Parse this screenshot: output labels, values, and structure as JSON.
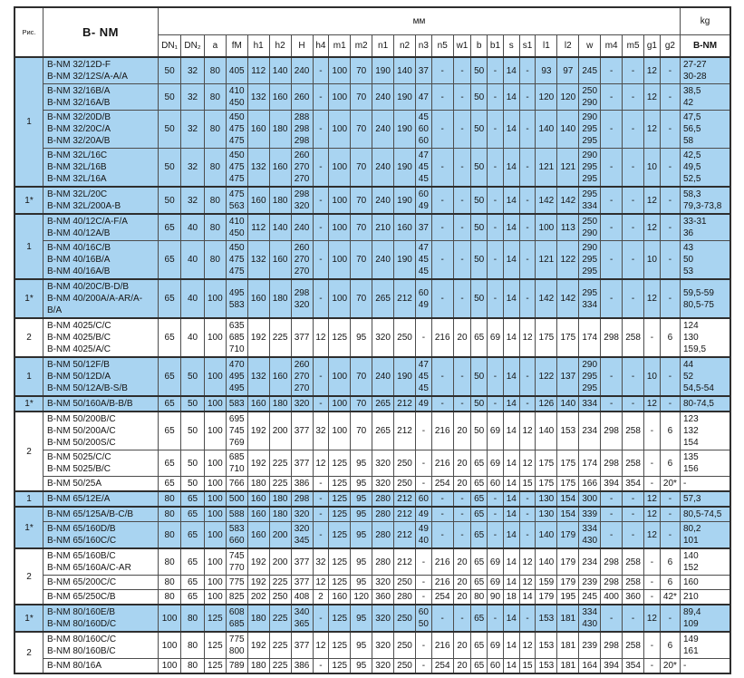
{
  "header": {
    "ris": "Рис.",
    "model": "B- NM",
    "unit": "мм",
    "kg": "kg",
    "kg_model": "B-NM"
  },
  "columns": [
    "DN₁",
    "DN₂",
    "a",
    "fM",
    "h1",
    "h2",
    "H",
    "h4",
    "m1",
    "m2",
    "n1",
    "n2",
    "n3",
    "n5",
    "w1",
    "b",
    "b1",
    "s",
    "s1",
    "l1",
    "l2",
    "w",
    "m4",
    "m5",
    "g1",
    "g2"
  ],
  "colors": {
    "row_highlight": "#a9d4f1",
    "grid_line": "#4d4d4d"
  },
  "groups": [
    {
      "ris": "1",
      "blue": true,
      "rows": [
        {
          "models": [
            "B-NM 32/12D-F",
            "B-NM 32/12S/A-A/A"
          ],
          "dims": [
            "50",
            "32",
            "80",
            "405",
            "112",
            "140",
            "240",
            "-",
            "100",
            "70",
            "190",
            "140",
            "37",
            "-",
            "-",
            "50",
            "-",
            "14",
            "-",
            "93",
            "97",
            "245",
            "-",
            "-",
            "12",
            "-"
          ],
          "kg": "27-27\n30-28"
        },
        {
          "models": [
            "B-NM 32/16B/A",
            "B-NM 32/16A/B"
          ],
          "dims": [
            "50",
            "32",
            "80",
            "410\n450",
            "132",
            "160",
            "260",
            "-",
            "100",
            "70",
            "240",
            "190",
            "47",
            "-",
            "-",
            "50",
            "-",
            "14",
            "-",
            "120",
            "120",
            "250\n290",
            "-",
            "-",
            "12",
            "-"
          ],
          "kg": "38,5\n42"
        },
        {
          "models": [
            "B-NM 32/20D/B",
            "B-NM 32/20C/A",
            "B-NM 32/20A/B"
          ],
          "dims": [
            "50",
            "32",
            "80",
            "450\n475\n475",
            "160",
            "180",
            "288\n298\n298",
            "-",
            "100",
            "70",
            "240",
            "190",
            "45\n60\n60",
            "-",
            "-",
            "50",
            "-",
            "14",
            "-",
            "140",
            "140",
            "290\n295\n295",
            "-",
            "-",
            "12",
            "-"
          ],
          "kg": "47,5\n56,5\n58"
        },
        {
          "models": [
            "B-NM 32L/16C",
            "B-NM 32L/16B",
            "B-NM 32L/16A"
          ],
          "dims": [
            "50",
            "32",
            "80",
            "450\n475\n475",
            "132",
            "160",
            "260\n270\n270",
            "-",
            "100",
            "70",
            "240",
            "190",
            "47\n45\n45",
            "-",
            "-",
            "50",
            "-",
            "14",
            "-",
            "121",
            "121",
            "290\n295\n295",
            "-",
            "-",
            "10",
            "-"
          ],
          "kg": "42,5\n49,5\n52,5"
        }
      ]
    },
    {
      "ris": "1*",
      "blue": true,
      "rows": [
        {
          "models": [
            "B-NM 32L/20C",
            "B-NM 32L/200A-B"
          ],
          "dims": [
            "50",
            "32",
            "80",
            "475\n563",
            "160",
            "180",
            "298\n320",
            "-",
            "100",
            "70",
            "240",
            "190",
            "60\n49",
            "-",
            "-",
            "50",
            "-",
            "14",
            "-",
            "142",
            "142",
            "295\n334",
            "-",
            "-",
            "12",
            "-"
          ],
          "kg": "58,3\n79,3-73,8"
        }
      ]
    },
    {
      "ris": "1",
      "blue": true,
      "rows": [
        {
          "models": [
            "B-NM 40/12C/A-F/A",
            "B-NM 40/12A/B"
          ],
          "dims": [
            "65",
            "40",
            "80",
            "410\n450",
            "112",
            "140",
            "240",
            "-",
            "100",
            "70",
            "210",
            "160",
            "37",
            "-",
            "-",
            "50",
            "-",
            "14",
            "-",
            "100",
            "113",
            "250\n290",
            "-",
            "-",
            "12",
            "-"
          ],
          "kg": "33-31\n36"
        },
        {
          "models": [
            "B-NM 40/16C/B",
            "B-NM 40/16B/A",
            "B-NM 40/16A/B"
          ],
          "dims": [
            "65",
            "40",
            "80",
            "450\n475\n475",
            "132",
            "160",
            "260\n270\n270",
            "-",
            "100",
            "70",
            "240",
            "190",
            "47\n45\n45",
            "-",
            "-",
            "50",
            "-",
            "14",
            "-",
            "121",
            "122",
            "290\n295\n295",
            "-",
            "-",
            "10",
            "-"
          ],
          "kg": "43\n50\n53"
        }
      ]
    },
    {
      "ris": "1*",
      "blue": true,
      "rows": [
        {
          "models": [
            "B-NM 40/20C/B-D/B",
            "B-NM 40/200A/A-AR/A-B/A"
          ],
          "dims": [
            "65",
            "40",
            "100",
            "495\n583",
            "160",
            "180",
            "298\n320",
            "-",
            "100",
            "70",
            "265",
            "212",
            "60\n49",
            "-",
            "-",
            "50",
            "-",
            "14",
            "-",
            "142",
            "142",
            "295\n334",
            "-",
            "-",
            "12",
            "-"
          ],
          "kg": "59,5-59\n80,5-75"
        }
      ]
    },
    {
      "ris": "2",
      "blue": false,
      "rows": [
        {
          "models": [
            "B-NM 4025/C/C",
            "B-NM 4025/B/C",
            "B-NM 4025/A/C"
          ],
          "dims": [
            "65",
            "40",
            "100",
            "635\n685\n710",
            "192",
            "225",
            "377",
            "12",
            "125",
            "95",
            "320",
            "250",
            "-",
            "216",
            "20",
            "65",
            "69",
            "14",
            "12",
            "175",
            "175",
            "174",
            "298",
            "258",
            "-",
            "6"
          ],
          "kg": "124\n130\n159,5"
        }
      ]
    },
    {
      "ris": "1",
      "blue": true,
      "rows": [
        {
          "models": [
            "B-NM 50/12F/B",
            "B-NM 50/12D/A",
            "B-NM 50/12A/B-S/B"
          ],
          "dims": [
            "65",
            "50",
            "100",
            "470\n495\n495",
            "132",
            "160",
            "260\n270\n270",
            "-",
            "100",
            "70",
            "240",
            "190",
            "47\n45\n45",
            "-",
            "-",
            "50",
            "-",
            "14",
            "-",
            "122",
            "137",
            "290\n295\n295",
            "-",
            "-",
            "10",
            "-"
          ],
          "kg": "44\n52\n54,5-54"
        }
      ]
    },
    {
      "ris": "1*",
      "blue": true,
      "rows": [
        {
          "models": [
            "B-NM 50/160A/B-B/B"
          ],
          "dims": [
            "65",
            "50",
            "100",
            "583",
            "160",
            "180",
            "320",
            "-",
            "100",
            "70",
            "265",
            "212",
            "49",
            "-",
            "-",
            "50",
            "-",
            "14",
            "-",
            "126",
            "140",
            "334",
            "-",
            "-",
            "12",
            "-"
          ],
          "kg": "80-74,5"
        }
      ]
    },
    {
      "ris": "2",
      "blue": false,
      "rows": [
        {
          "models": [
            "B-NM 50/200B/C",
            "B-NM 50/200A/C",
            "B-NM 50/200S/C"
          ],
          "dims": [
            "65",
            "50",
            "100",
            "695\n745\n769",
            "192",
            "200",
            "377",
            "32",
            "100",
            "70",
            "265",
            "212",
            "-",
            "216",
            "20",
            "50",
            "69",
            "14",
            "12",
            "140",
            "153",
            "234",
            "298",
            "258",
            "-",
            "6"
          ],
          "kg": "123\n132\n154"
        },
        {
          "models": [
            "B-NM 5025/C/C",
            "B-NM 5025/B/C"
          ],
          "dims": [
            "65",
            "50",
            "100",
            "685\n710",
            "192",
            "225",
            "377",
            "12",
            "125",
            "95",
            "320",
            "250",
            "-",
            "216",
            "20",
            "65",
            "69",
            "14",
            "12",
            "175",
            "175",
            "174",
            "298",
            "258",
            "-",
            "6"
          ],
          "kg": "135\n156"
        },
        {
          "models": [
            "B-NM 50/25A"
          ],
          "dims": [
            "65",
            "50",
            "100",
            "766",
            "180",
            "225",
            "386",
            "-",
            "125",
            "95",
            "320",
            "250",
            "-",
            "254",
            "20",
            "65",
            "60",
            "14",
            "15",
            "175",
            "175",
            "166",
            "394",
            "354",
            "-",
            "20*"
          ],
          "kg": "-"
        }
      ]
    },
    {
      "ris": "1",
      "blue": true,
      "rows": [
        {
          "models": [
            "B-NM 65/12E/A"
          ],
          "dims": [
            "80",
            "65",
            "100",
            "500",
            "160",
            "180",
            "298",
            "-",
            "125",
            "95",
            "280",
            "212",
            "60",
            "-",
            "-",
            "65",
            "-",
            "14",
            "-",
            "130",
            "154",
            "300",
            "-",
            "-",
            "12",
            "-"
          ],
          "kg": "57,3"
        }
      ]
    },
    {
      "ris": "1*",
      "blue": true,
      "rows": [
        {
          "models": [
            "B-NM 65/125A/B-C/B"
          ],
          "dims": [
            "80",
            "65",
            "100",
            "588",
            "160",
            "180",
            "320",
            "-",
            "125",
            "95",
            "280",
            "212",
            "49",
            "-",
            "-",
            "65",
            "-",
            "14",
            "-",
            "130",
            "154",
            "339",
            "-",
            "-",
            "12",
            "-"
          ],
          "kg": "80,5-74,5"
        },
        {
          "models": [
            "B-NM 65/160D/B",
            "B-NM 65/160C/C"
          ],
          "dims": [
            "80",
            "65",
            "100",
            "583\n660",
            "160",
            "200",
            "320\n345",
            "-",
            "125",
            "95",
            "280",
            "212",
            "49\n40",
            "-",
            "-",
            "65",
            "-",
            "14",
            "-",
            "140",
            "179",
            "334\n430",
            "-",
            "-",
            "12",
            "-"
          ],
          "kg": "80,2\n101"
        }
      ]
    },
    {
      "ris": "2",
      "blue": false,
      "rows": [
        {
          "models": [
            "B-NM 65/160B/C",
            "B-NM 65/160A/C-AR"
          ],
          "dims": [
            "80",
            "65",
            "100",
            "745\n770",
            "192",
            "200",
            "377",
            "32",
            "125",
            "95",
            "280",
            "212",
            "-",
            "216",
            "20",
            "65",
            "69",
            "14",
            "12",
            "140",
            "179",
            "234",
            "298",
            "258",
            "-",
            "6"
          ],
          "kg": "140\n152"
        },
        {
          "models": [
            "B-NM 65/200C/C"
          ],
          "dims": [
            "80",
            "65",
            "100",
            "775",
            "192",
            "225",
            "377",
            "12",
            "125",
            "95",
            "320",
            "250",
            "-",
            "216",
            "20",
            "65",
            "69",
            "14",
            "12",
            "159",
            "179",
            "239",
            "298",
            "258",
            "-",
            "6"
          ],
          "kg": "160"
        },
        {
          "models": [
            "B-NM 65/250C/B"
          ],
          "dims": [
            "80",
            "65",
            "100",
            "825",
            "202",
            "250",
            "408",
            "2",
            "160",
            "120",
            "360",
            "280",
            "-",
            "254",
            "20",
            "80",
            "90",
            "18",
            "14",
            "179",
            "195",
            "245",
            "400",
            "360",
            "-",
            "42*"
          ],
          "kg": "210"
        }
      ]
    },
    {
      "ris": "1*",
      "blue": true,
      "rows": [
        {
          "models": [
            "B-NM 80/160E/B",
            "B-NM 80/160D/C"
          ],
          "dims": [
            "100",
            "80",
            "125",
            "608\n685",
            "180",
            "225",
            "340\n365",
            "-",
            "125",
            "95",
            "320",
            "250",
            "60\n50",
            "-",
            "-",
            "65",
            "-",
            "14",
            "-",
            "153",
            "181",
            "334\n430",
            "-",
            "-",
            "12",
            "-"
          ],
          "kg": "89,4\n109"
        }
      ]
    },
    {
      "ris": "2",
      "blue": false,
      "rows": [
        {
          "models": [
            "B-NM 80/160C/C",
            "B-NM 80/160B/C"
          ],
          "dims": [
            "100",
            "80",
            "125",
            "775\n800",
            "192",
            "225",
            "377",
            "12",
            "125",
            "95",
            "320",
            "250",
            "-",
            "216",
            "20",
            "65",
            "69",
            "14",
            "12",
            "153",
            "181",
            "239",
            "298",
            "258",
            "-",
            "6"
          ],
          "kg": "149\n161"
        },
        {
          "models": [
            "B-NM 80/16A"
          ],
          "dims": [
            "100",
            "80",
            "125",
            "789",
            "180",
            "225",
            "386",
            "-",
            "125",
            "95",
            "320",
            "250",
            "-",
            "254",
            "20",
            "65",
            "60",
            "14",
            "15",
            "153",
            "181",
            "164",
            "394",
            "354",
            "-",
            "20*"
          ],
          "kg": "-"
        }
      ]
    }
  ]
}
